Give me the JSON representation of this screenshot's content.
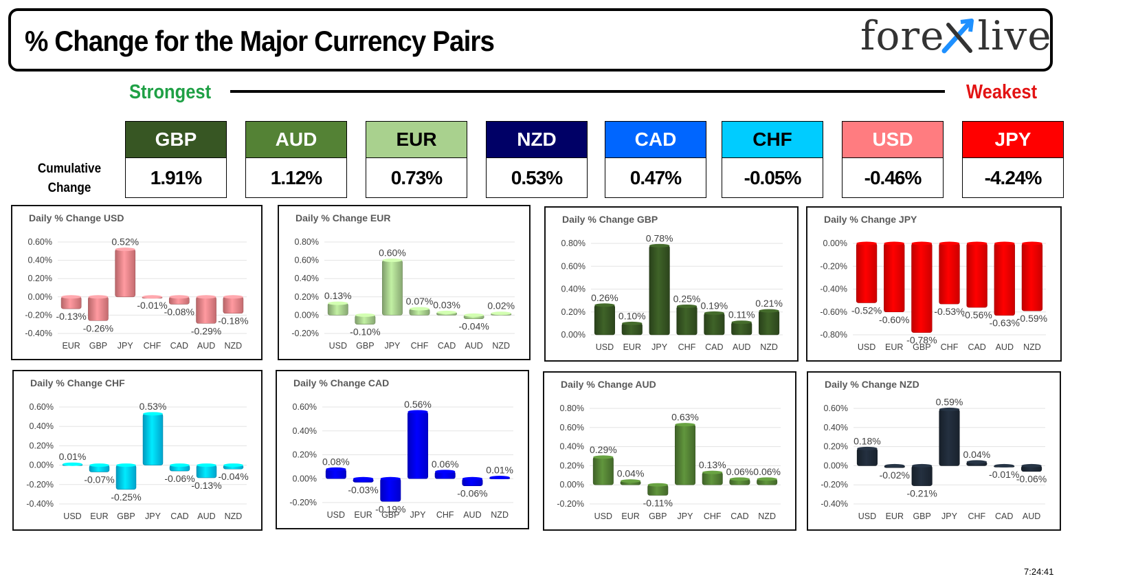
{
  "title": "% Change for the Major Currency Pairs",
  "logo": {
    "text_left": "fore",
    "text_right": "live",
    "mark_icon": "x-arrow-icon"
  },
  "labels": {
    "strongest": "Strongest",
    "weakest": "Weakest",
    "cumulative_line1": "Cumulative",
    "cumulative_line2": "Change"
  },
  "rankings": [
    {
      "currency": "GBP",
      "change": "1.91%",
      "bg": "#375623",
      "fg": "#ffffff"
    },
    {
      "currency": "AUD",
      "change": "1.12%",
      "bg": "#548235",
      "fg": "#ffffff"
    },
    {
      "currency": "EUR",
      "change": "0.73%",
      "bg": "#a9d18e",
      "fg": "#000000"
    },
    {
      "currency": "NZD",
      "change": "0.53%",
      "bg": "#000066",
      "fg": "#ffffff"
    },
    {
      "currency": "CAD",
      "change": "0.47%",
      "bg": "#0066ff",
      "fg": "#ffffff"
    },
    {
      "currency": "CHF",
      "change": "-0.05%",
      "bg": "#00ccff",
      "fg": "#000000"
    },
    {
      "currency": "USD",
      "change": "-0.46%",
      "bg": "#ff7c80",
      "fg": "#ffffff"
    },
    {
      "currency": "JPY",
      "change": "-4.24%",
      "bg": "#ff0000",
      "fg": "#ffffff"
    }
  ],
  "timestamp": "7:24:41",
  "chart_data": [
    {
      "type": "bar",
      "title": "Daily % Change USD",
      "color": "#f4868b",
      "categories": [
        "EUR",
        "GBP",
        "JPY",
        "CHF",
        "CAD",
        "AUD",
        "NZD"
      ],
      "values": [
        -0.13,
        -0.26,
        0.52,
        -0.01,
        -0.08,
        -0.29,
        -0.18
      ],
      "labels": [
        "-0.13%",
        "-0.26%",
        "0.52%",
        "-0.01%",
        "-0.08%",
        "-0.29%",
        "-0.18%"
      ],
      "yticks": [
        "0.60%",
        "0.40%",
        "0.20%",
        "0.00%",
        "-0.20%",
        "-0.40%"
      ],
      "ylim": [
        -0.4,
        0.6
      ]
    },
    {
      "type": "bar",
      "title": "Daily % Change EUR",
      "color": "#a9d18e",
      "categories": [
        "USD",
        "GBP",
        "JPY",
        "CHF",
        "CAD",
        "AUD",
        "NZD"
      ],
      "values": [
        0.13,
        -0.1,
        0.6,
        0.07,
        0.03,
        -0.04,
        0.02
      ],
      "labels": [
        "0.13%",
        "-0.10%",
        "0.60%",
        "0.07%",
        "0.03%",
        "-0.04%",
        "0.02%"
      ],
      "yticks": [
        "0.80%",
        "0.60%",
        "0.40%",
        "0.20%",
        "0.00%",
        "-0.20%"
      ],
      "ylim": [
        -0.2,
        0.8
      ]
    },
    {
      "type": "bar",
      "title": "Daily % Change GBP",
      "color": "#375623",
      "categories": [
        "USD",
        "EUR",
        "JPY",
        "CHF",
        "CAD",
        "AUD",
        "NZD"
      ],
      "values": [
        0.26,
        0.1,
        0.78,
        0.25,
        0.19,
        0.11,
        0.21
      ],
      "labels": [
        "0.26%",
        "0.10%",
        "0.78%",
        "0.25%",
        "0.19%",
        "0.11%",
        "0.21%"
      ],
      "yticks": [
        "0.80%",
        "0.60%",
        "0.40%",
        "0.20%",
        "0.00%"
      ],
      "ylim": [
        0,
        0.8
      ]
    },
    {
      "type": "bar",
      "title": "Daily % Change JPY",
      "color": "#ff0000",
      "categories": [
        "USD",
        "EUR",
        "GBP",
        "CHF",
        "CAD",
        "AUD",
        "NZD"
      ],
      "values": [
        -0.52,
        -0.6,
        -0.78,
        -0.53,
        -0.56,
        -0.63,
        -0.59
      ],
      "labels": [
        "-0.52%",
        "-0.60%",
        "-0.78%",
        "-0.53%",
        "-0.56%",
        "-0.63%",
        "-0.59%"
      ],
      "yticks": [
        "0.00%",
        "-0.20%",
        "-0.40%",
        "-0.60%",
        "-0.80%"
      ],
      "ylim": [
        -0.8,
        0
      ]
    },
    {
      "type": "bar",
      "title": "Daily % Change CHF",
      "color": "#00ccff",
      "categories": [
        "USD",
        "EUR",
        "GBP",
        "JPY",
        "CAD",
        "AUD",
        "NZD"
      ],
      "values": [
        0.01,
        -0.07,
        -0.25,
        0.53,
        -0.06,
        -0.13,
        -0.04
      ],
      "labels": [
        "0.01%",
        "-0.07%",
        "-0.25%",
        "0.53%",
        "-0.06%",
        "-0.13%",
        "-0.04%"
      ],
      "yticks": [
        "0.60%",
        "0.40%",
        "0.20%",
        "0.00%",
        "-0.20%",
        "-0.40%"
      ],
      "ylim": [
        -0.4,
        0.6
      ]
    },
    {
      "type": "bar",
      "title": "Daily % Change CAD",
      "color": "#0000ff",
      "categories": [
        "USD",
        "EUR",
        "GBP",
        "JPY",
        "CHF",
        "AUD",
        "NZD"
      ],
      "values": [
        0.08,
        -0.03,
        -0.19,
        0.56,
        0.06,
        -0.06,
        0.01
      ],
      "labels": [
        "0.08%",
        "-0.03%",
        "-0.19%",
        "0.56%",
        "0.06%",
        "-0.06%",
        "0.01%"
      ],
      "yticks": [
        "0.60%",
        "0.40%",
        "0.20%",
        "0.00%",
        "-0.20%"
      ],
      "ylim": [
        -0.2,
        0.6
      ]
    },
    {
      "type": "bar",
      "title": "Daily % Change AUD",
      "color": "#548235",
      "categories": [
        "USD",
        "EUR",
        "GBP",
        "JPY",
        "CHF",
        "CAD",
        "NZD"
      ],
      "values": [
        0.29,
        0.04,
        -0.11,
        0.63,
        0.13,
        0.06,
        0.06
      ],
      "labels": [
        "0.29%",
        "0.04%",
        "-0.11%",
        "0.63%",
        "0.13%",
        "0.06%",
        "0.06%"
      ],
      "yticks": [
        "0.80%",
        "0.60%",
        "0.40%",
        "0.20%",
        "0.00%",
        "-0.20%"
      ],
      "ylim": [
        -0.2,
        0.8
      ]
    },
    {
      "type": "bar",
      "title": "Daily % Change NZD",
      "color": "#1f2a38",
      "categories": [
        "USD",
        "EUR",
        "GBP",
        "JPY",
        "CHF",
        "CAD",
        "AUD"
      ],
      "values": [
        0.18,
        -0.02,
        -0.21,
        0.59,
        0.04,
        -0.01,
        -0.06
      ],
      "labels": [
        "0.18%",
        "-0.02%",
        "-0.21%",
        "0.59%",
        "0.04%",
        "-0.01%",
        "-0.06%"
      ],
      "yticks": [
        "0.60%",
        "0.40%",
        "0.20%",
        "0.00%",
        "-0.20%",
        "-0.40%"
      ],
      "ylim": [
        -0.4,
        0.6
      ]
    }
  ]
}
